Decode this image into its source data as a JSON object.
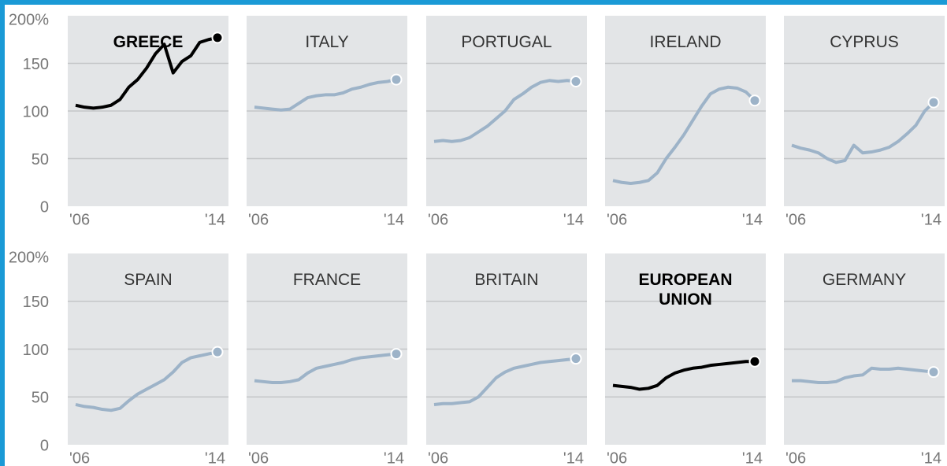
{
  "chart_data": {
    "type": "line",
    "x": [
      2006,
      2006.5,
      2007,
      2007.5,
      2008,
      2008.5,
      2009,
      2009.5,
      2010,
      2010.5,
      2011,
      2011.5,
      2012,
      2012.5,
      2013,
      2013.5,
      2014
    ],
    "xlim": [
      2006,
      2014
    ],
    "xticks": [
      {
        "value": 2006,
        "label": "'06"
      },
      {
        "value": 2014,
        "label": "'14"
      }
    ],
    "ylim": [
      0,
      200
    ],
    "yticks": [
      0,
      50,
      100,
      150,
      {
        "value": 200,
        "label": "200%"
      }
    ],
    "grid": true,
    "series": [
      {
        "name": "GREECE",
        "color": "#000000",
        "values": [
          106,
          104,
          103,
          104,
          106,
          112,
          125,
          133,
          145,
          160,
          170,
          140,
          152,
          158,
          172,
          175,
          177
        ]
      },
      {
        "name": "ITALY",
        "color": "#9db3c8",
        "values": [
          104,
          103,
          102,
          101,
          102,
          108,
          114,
          116,
          117,
          117,
          119,
          123,
          125,
          128,
          130,
          131,
          133
        ]
      },
      {
        "name": "PORTUGAL",
        "color": "#9db3c8",
        "values": [
          68,
          69,
          68,
          69,
          72,
          78,
          84,
          92,
          100,
          112,
          118,
          125,
          130,
          132,
          131,
          132,
          131
        ]
      },
      {
        "name": "IRELAND",
        "color": "#9db3c8",
        "values": [
          27,
          25,
          24,
          25,
          27,
          35,
          50,
          62,
          75,
          90,
          105,
          118,
          123,
          125,
          124,
          120,
          111
        ]
      },
      {
        "name": "CYPRUS",
        "color": "#9db3c8",
        "values": [
          64,
          61,
          59,
          56,
          50,
          46,
          48,
          64,
          56,
          57,
          59,
          62,
          68,
          76,
          85,
          100,
          109
        ]
      },
      {
        "name": "SPAIN",
        "color": "#9db3c8",
        "values": [
          42,
          40,
          39,
          37,
          36,
          38,
          46,
          53,
          58,
          63,
          68,
          76,
          86,
          91,
          93,
          95,
          97
        ]
      },
      {
        "name": "FRANCE",
        "color": "#9db3c8",
        "values": [
          67,
          66,
          65,
          65,
          66,
          68,
          75,
          80,
          82,
          84,
          86,
          89,
          91,
          92,
          93,
          94,
          95
        ]
      },
      {
        "name": "BRITAIN",
        "color": "#9db3c8",
        "values": [
          42,
          43,
          43,
          44,
          45,
          50,
          60,
          70,
          76,
          80,
          82,
          84,
          86,
          87,
          88,
          89,
          90
        ]
      },
      {
        "name": "EUROPEAN UNION",
        "color": "#000000",
        "values": [
          62,
          61,
          60,
          58,
          59,
          62,
          70,
          75,
          78,
          80,
          81,
          83,
          84,
          85,
          86,
          87,
          87
        ]
      },
      {
        "name": "GERMANY",
        "color": "#9db3c8",
        "values": [
          67,
          67,
          66,
          65,
          65,
          66,
          70,
          72,
          73,
          80,
          79,
          79,
          80,
          79,
          78,
          77,
          76
        ]
      }
    ]
  }
}
